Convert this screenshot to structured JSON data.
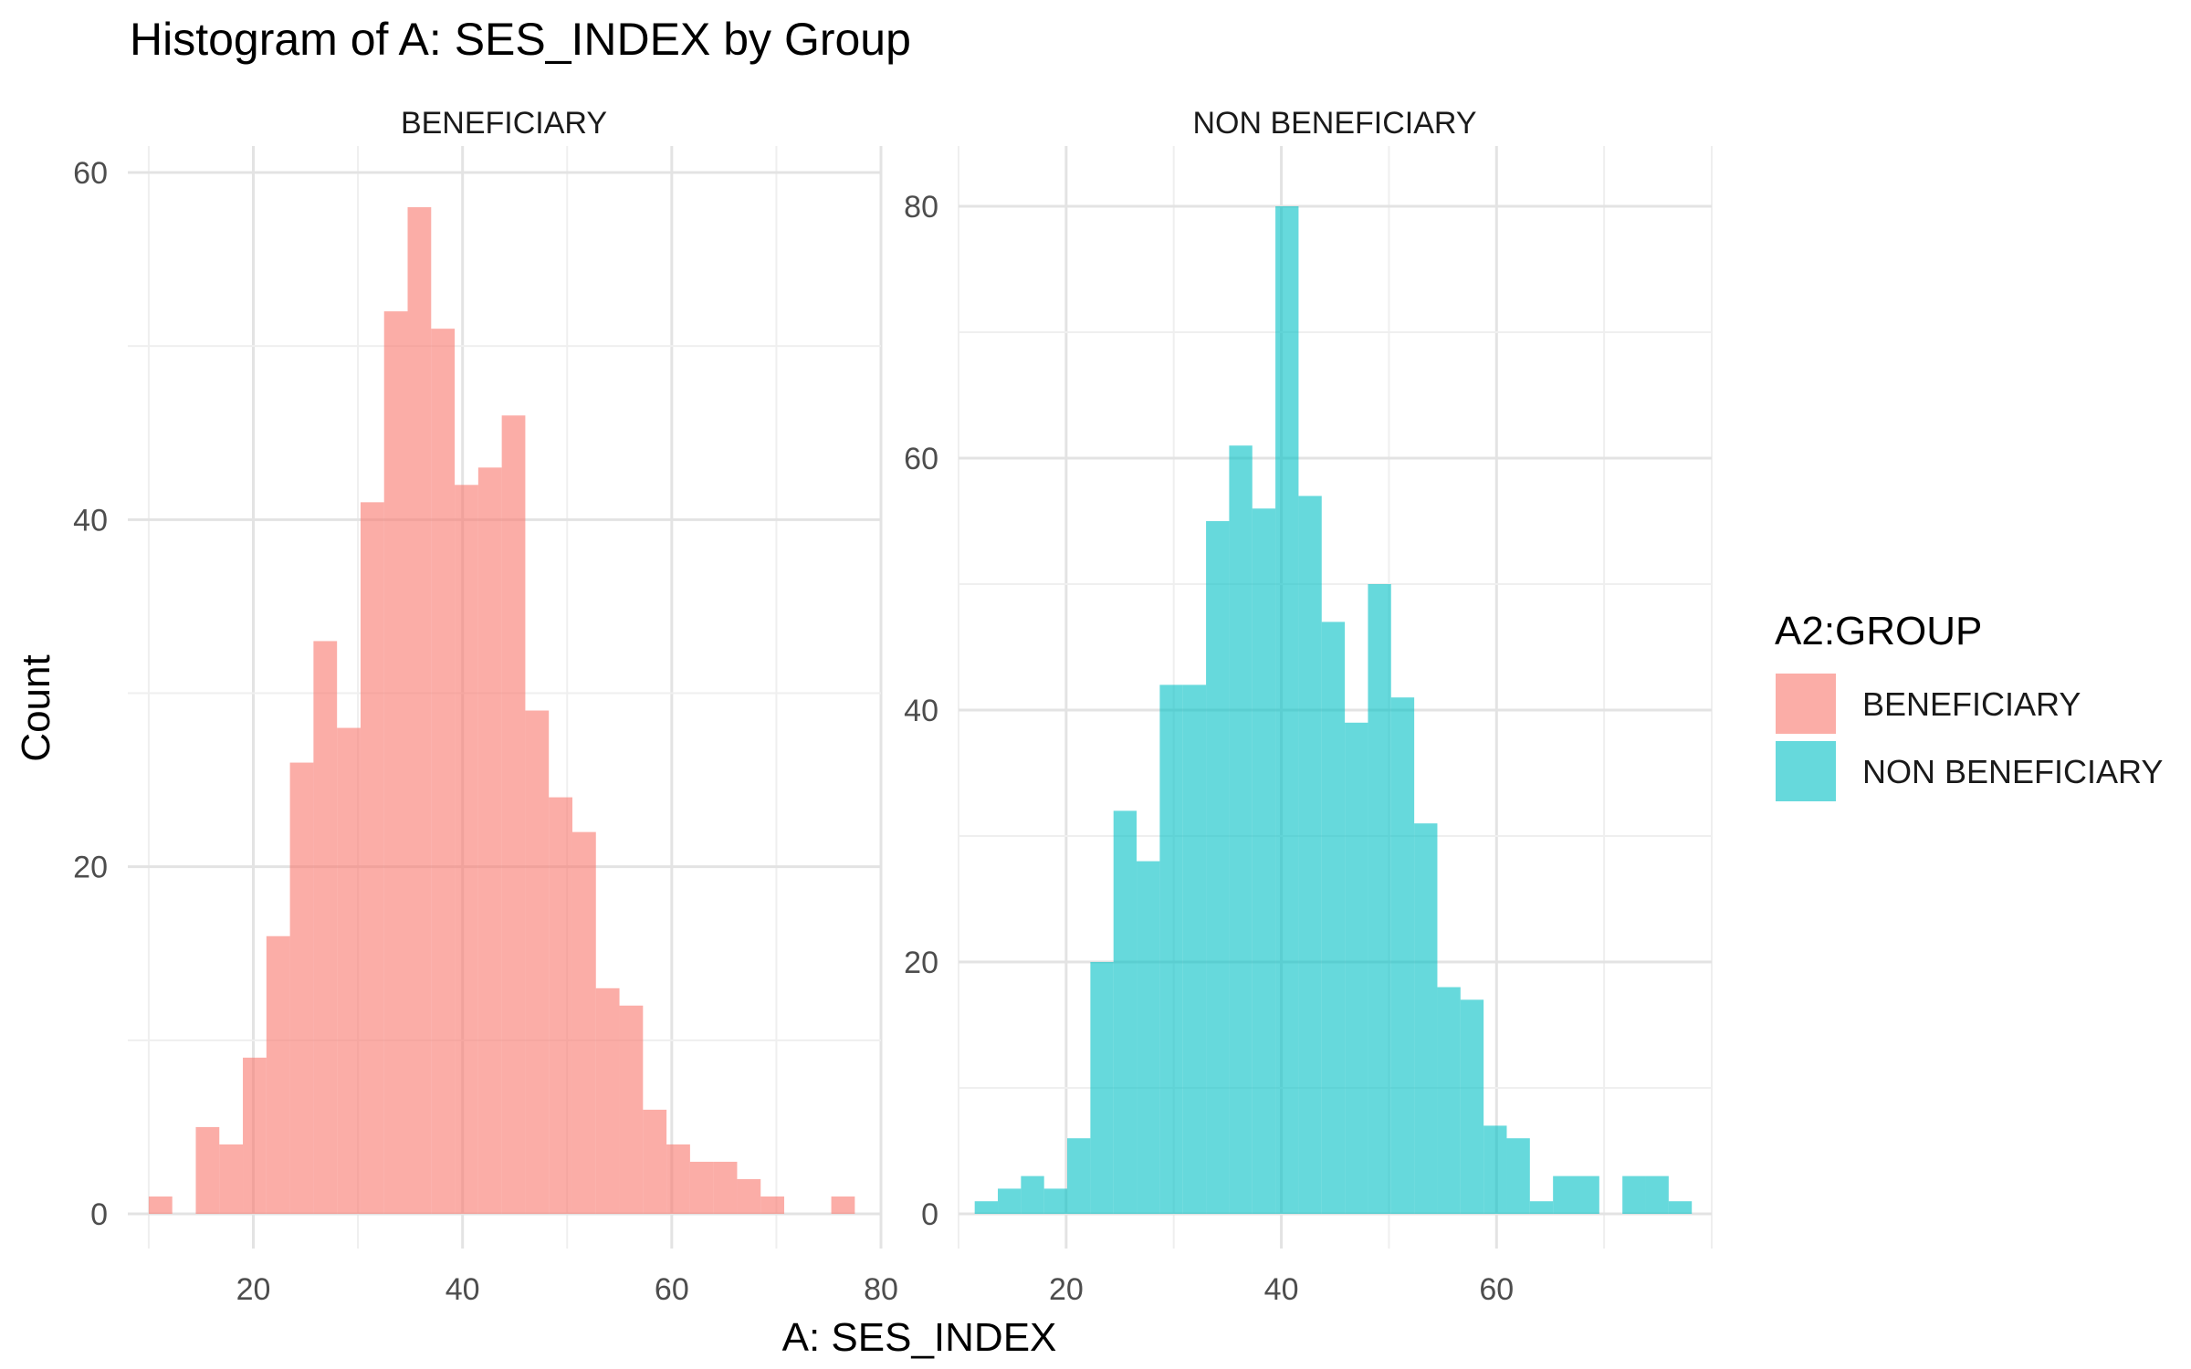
{
  "chart_data": {
    "type": "bar",
    "title": "Histogram of A: SES_INDEX by Group",
    "xlabel": "A: SES_INDEX",
    "ylabel": "Count",
    "grid": true,
    "legend_position": "right",
    "legend": {
      "title": "A2:GROUP",
      "entries": [
        {
          "label": "BENEFICIARY",
          "color": "#F8766D"
        },
        {
          "label": "NON BENEFICIARY",
          "color": "#00BFC4"
        }
      ]
    },
    "panels": [
      {
        "strip": "BENEFICIARY",
        "color": "#F8766D",
        "xlim": [
          8,
          80
        ],
        "xticks": [
          20,
          40,
          60,
          80
        ],
        "ylim": [
          0,
          60
        ],
        "yticks": [
          0,
          20,
          40,
          60
        ],
        "bin_start": 10.0,
        "bin_width": 2.25,
        "counts": [
          1,
          0,
          5,
          4,
          9,
          16,
          26,
          33,
          28,
          41,
          52,
          58,
          51,
          42,
          43,
          46,
          29,
          24,
          22,
          13,
          12,
          6,
          4,
          3,
          3,
          2,
          1,
          0,
          0,
          1
        ]
      },
      {
        "strip": "NON BENEFICIARY",
        "color": "#00BFC4",
        "xlim": [
          10,
          80
        ],
        "xticks": [
          20,
          40,
          60
        ],
        "ylim": [
          0,
          80
        ],
        "yticks": [
          0,
          20,
          40,
          60,
          80
        ],
        "bin_start": 11.5,
        "bin_width": 2.15,
        "counts": [
          1,
          2,
          3,
          2,
          6,
          20,
          32,
          28,
          42,
          42,
          55,
          61,
          56,
          80,
          57,
          47,
          39,
          50,
          41,
          31,
          18,
          17,
          7,
          6,
          1,
          3,
          3,
          0,
          3,
          3,
          1
        ]
      }
    ]
  }
}
